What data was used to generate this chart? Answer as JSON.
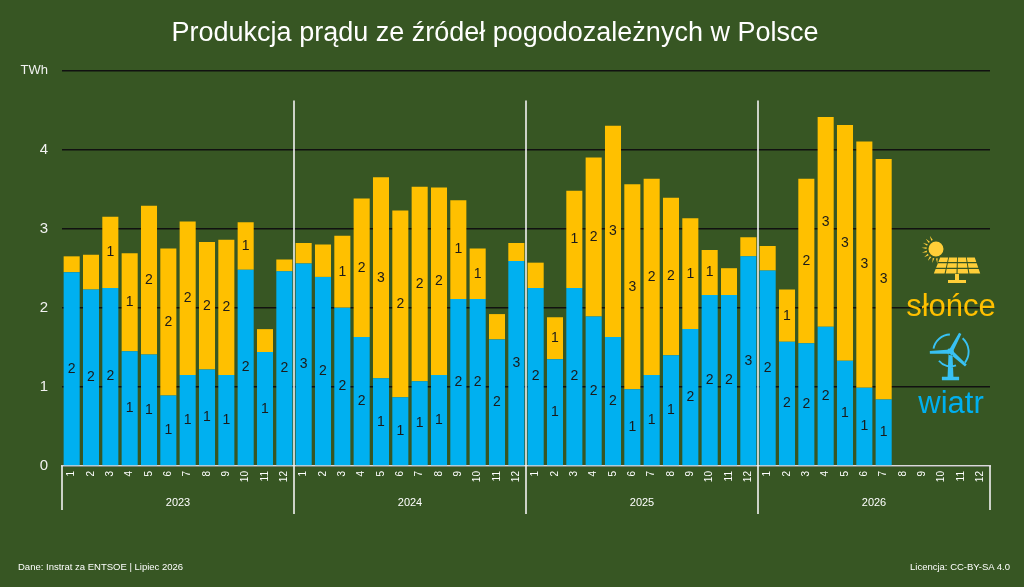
{
  "chart_data": {
    "type": "bar",
    "title": "Produkcja prądu ze źródeł pogodozależnych w Polsce",
    "categories": [
      "1",
      "2",
      "3",
      "4",
      "5",
      "6",
      "7",
      "8",
      "9",
      "10",
      "11",
      "12",
      "1",
      "2",
      "3",
      "4",
      "5",
      "6",
      "7",
      "8",
      "9",
      "10",
      "11",
      "12",
      "1",
      "2",
      "3",
      "4",
      "5",
      "6",
      "7",
      "8",
      "9",
      "10",
      "11",
      "12",
      "1",
      "2",
      "3",
      "4",
      "5",
      "6",
      "7",
      "8",
      "9",
      "10",
      "11",
      "12"
    ],
    "series": [
      {
        "name": "wiatr",
        "color": "#00b0f0",
        "values": [
          2.45,
          2.23,
          2.25,
          1.45,
          1.41,
          0.89,
          1.15,
          1.22,
          1.15,
          2.48,
          1.44,
          2.46,
          2.56,
          2.39,
          2.0,
          1.63,
          1.11,
          0.87,
          1.07,
          1.15,
          2.11,
          2.11,
          1.6,
          2.59,
          2.25,
          1.35,
          2.25,
          1.89,
          1.63,
          0.97,
          1.15,
          1.4,
          1.73,
          2.16,
          2.16,
          2.65,
          2.47,
          1.57,
          1.55,
          1.76,
          1.33,
          0.99,
          0.84,
          null,
          null,
          null,
          null,
          null
        ],
        "value_labels": [
          "2",
          "2",
          "2",
          "1",
          "1",
          "1",
          "1",
          "1",
          "1",
          "2",
          "1",
          "2",
          "3",
          "2",
          "2",
          "2",
          "1",
          "1",
          "1",
          "1",
          "2",
          "2",
          "2",
          "3",
          "2",
          "1",
          "2",
          "2",
          "2",
          "1",
          "1",
          "1",
          "2",
          "2",
          "2",
          "3",
          "2",
          "2",
          "2",
          "2",
          "1",
          "1",
          "1",
          null,
          null,
          null,
          null,
          null
        ]
      },
      {
        "name": "słońce",
        "color": "#ffc000",
        "values": [
          0.2,
          0.44,
          0.9,
          1.24,
          1.88,
          1.86,
          1.94,
          1.61,
          1.71,
          0.6,
          0.29,
          0.15,
          0.26,
          0.41,
          0.91,
          1.75,
          2.54,
          2.36,
          2.46,
          2.37,
          1.25,
          0.64,
          0.32,
          0.23,
          0.32,
          0.53,
          1.23,
          2.01,
          2.67,
          2.59,
          2.48,
          1.99,
          1.4,
          0.57,
          0.34,
          0.24,
          0.31,
          0.66,
          2.08,
          2.65,
          2.98,
          3.11,
          3.04,
          null,
          null,
          null,
          null,
          null
        ],
        "value_labels": [
          null,
          null,
          "1",
          "1",
          "2",
          "2",
          "2",
          "2",
          "2",
          "1",
          null,
          null,
          null,
          null,
          "1",
          "2",
          "3",
          "2",
          "2",
          "2",
          "1",
          "1",
          null,
          null,
          null,
          "1",
          "1",
          "2",
          "3",
          "3",
          "2",
          "2",
          "1",
          "1",
          null,
          null,
          null,
          "1",
          "2",
          "3",
          "3",
          "3",
          "3",
          null,
          null,
          null,
          null,
          null
        ]
      }
    ],
    "stacked": true,
    "ylim": [
      0,
      5
    ],
    "yticks": [
      0,
      1,
      2,
      3,
      4,
      {
        "value": 5,
        "label": "TWh"
      }
    ],
    "grid": "y",
    "legend": "right",
    "annotations": [
      "2023",
      "2024",
      "2025",
      "2026",
      "Dane: Instrat za ENTSOE | Lipiec 2026",
      "Licencja: CC-BY-SA 4.0"
    ]
  }
}
